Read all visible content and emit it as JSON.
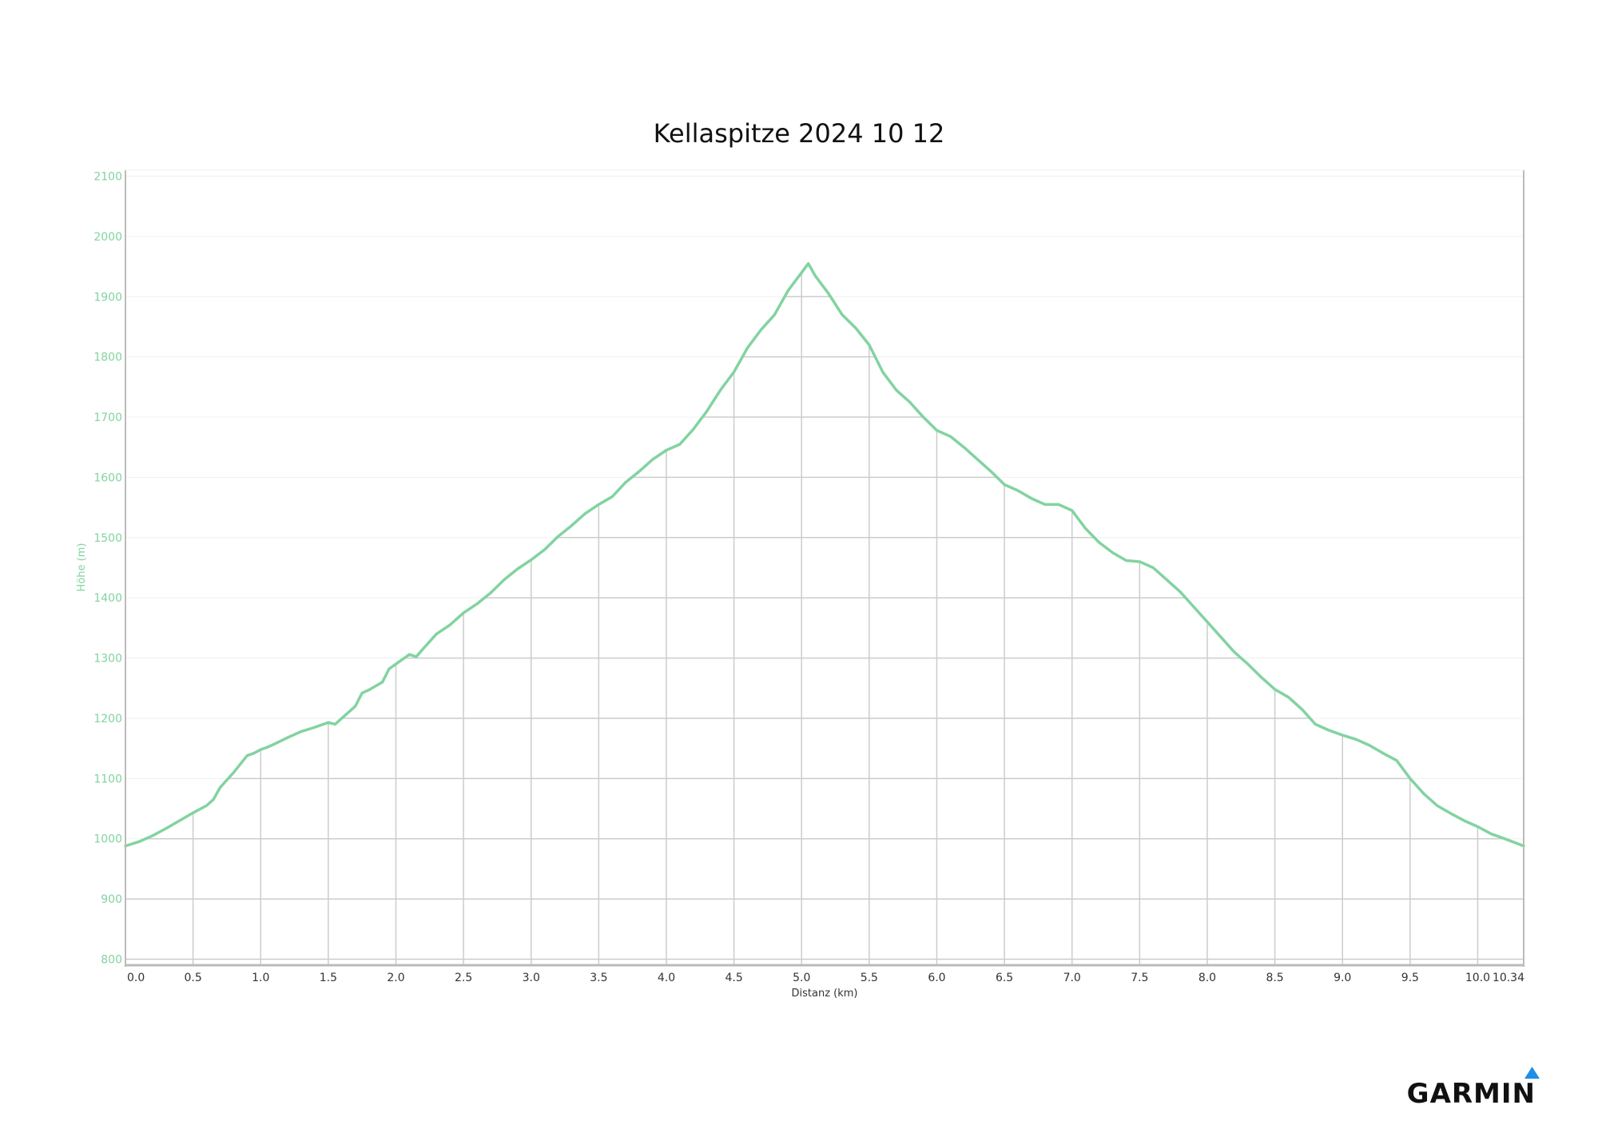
{
  "chart_data": {
    "type": "area",
    "title": "Kellaspitze 2024 10 12",
    "xlabel": "Distanz (km)",
    "ylabel": "Höhe (m)",
    "xlim": [
      0,
      10.34
    ],
    "ylim": [
      790,
      2110
    ],
    "xticks": [
      0,
      0.5,
      1,
      1.5,
      2,
      2.5,
      3,
      3.5,
      4,
      4.5,
      5,
      5.5,
      6,
      6.5,
      7,
      7.5,
      8,
      8.5,
      9,
      9.5,
      10,
      10.34
    ],
    "xtick_labels": [
      "0.0",
      "0.5",
      "1.0",
      "1.5",
      "2.0",
      "2.5",
      "3.0",
      "3.5",
      "4.0",
      "4.5",
      "5.0",
      "5.5",
      "6.0",
      "6.5",
      "7.0",
      "7.5",
      "8.0",
      "8.5",
      "9.0",
      "9.5",
      "10.0",
      "10.34"
    ],
    "yticks": [
      800,
      900,
      1000,
      1100,
      1200,
      1300,
      1400,
      1500,
      1600,
      1700,
      1800,
      1900,
      2000,
      2100
    ],
    "ytick_labels": [
      "800",
      "900",
      "1000",
      "1100",
      "1200",
      "1300",
      "1400",
      "1500",
      "1600",
      "1700",
      "1800",
      "1900",
      "2000",
      "2100"
    ],
    "grid": true,
    "legend": "none",
    "series": [
      {
        "x": [
          0,
          0.1,
          0.2,
          0.3,
          0.4,
          0.5,
          0.6,
          0.65,
          0.7,
          0.8,
          0.9,
          0.95,
          1.0,
          1.05,
          1.1,
          1.2,
          1.3,
          1.4,
          1.5,
          1.55,
          1.6,
          1.7,
          1.75,
          1.8,
          1.9,
          1.95,
          2.0,
          2.1,
          2.15,
          2.2,
          2.3,
          2.4,
          2.5,
          2.6,
          2.7,
          2.8,
          2.9,
          3.0,
          3.1,
          3.2,
          3.3,
          3.4,
          3.5,
          3.6,
          3.7,
          3.8,
          3.9,
          4.0,
          4.1,
          4.2,
          4.3,
          4.4,
          4.5,
          4.6,
          4.7,
          4.8,
          4.9,
          5.0,
          5.05,
          5.1,
          5.2,
          5.3,
          5.4,
          5.5,
          5.6,
          5.7,
          5.8,
          5.9,
          6.0,
          6.1,
          6.2,
          6.3,
          6.4,
          6.5,
          6.6,
          6.7,
          6.8,
          6.9,
          7.0,
          7.1,
          7.2,
          7.3,
          7.4,
          7.5,
          7.6,
          7.7,
          7.8,
          7.9,
          8.0,
          8.1,
          8.2,
          8.3,
          8.4,
          8.5,
          8.6,
          8.7,
          8.8,
          8.9,
          9.0,
          9.1,
          9.2,
          9.3,
          9.4,
          9.5,
          9.6,
          9.7,
          9.8,
          9.9,
          10.0,
          10.1,
          10.2,
          10.34
        ],
        "y": [
          988,
          995,
          1005,
          1017,
          1030,
          1043,
          1055,
          1065,
          1085,
          1110,
          1138,
          1142,
          1148,
          1152,
          1157,
          1168,
          1178,
          1185,
          1193,
          1190,
          1200,
          1220,
          1242,
          1247,
          1260,
          1282,
          1290,
          1306,
          1302,
          1315,
          1340,
          1355,
          1375,
          1390,
          1408,
          1430,
          1448,
          1463,
          1480,
          1502,
          1520,
          1540,
          1555,
          1568,
          1592,
          1610,
          1630,
          1645,
          1655,
          1680,
          1710,
          1745,
          1775,
          1815,
          1845,
          1870,
          1910,
          1940,
          1955,
          1935,
          1905,
          1870,
          1848,
          1820,
          1775,
          1745,
          1725,
          1700,
          1678,
          1668,
          1650,
          1630,
          1610,
          1588,
          1578,
          1565,
          1555,
          1555,
          1545,
          1515,
          1492,
          1475,
          1462,
          1460,
          1450,
          1430,
          1410,
          1385,
          1360,
          1335,
          1310,
          1290,
          1268,
          1248,
          1235,
          1215,
          1190,
          1180,
          1172,
          1165,
          1155,
          1142,
          1130,
          1100,
          1075,
          1055,
          1042,
          1030,
          1020,
          1008,
          1000,
          988
        ]
      }
    ],
    "colors": {
      "line": "#82d3a0",
      "grid": "#cccccc",
      "axis_text": "#82d3a0"
    }
  },
  "branding": {
    "logo_text": "GARMIN",
    "logo_icon": "triangle-icon",
    "logo_icon_color": "#1f8ee6"
  }
}
